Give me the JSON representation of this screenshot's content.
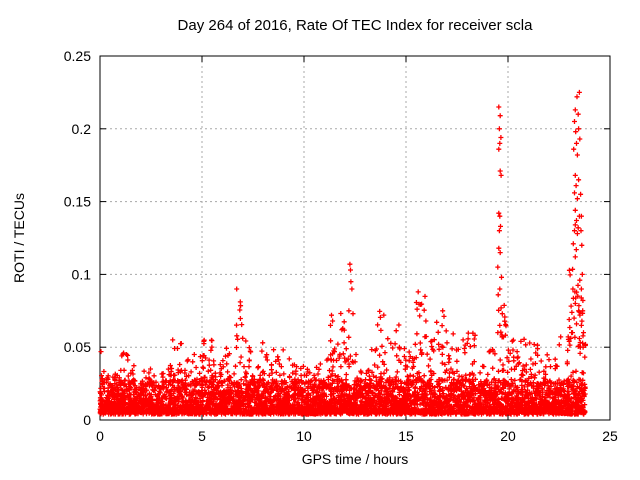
{
  "page": {
    "background": "#ffffff"
  },
  "chart_data": {
    "type": "scatter",
    "title": "Day 264 of 2016, Rate Of TEC Index for receiver scla",
    "xlabel": "GPS time / hours",
    "ylabel": "ROTI / TECUs",
    "xlim": [
      0,
      25
    ],
    "ylim": [
      0,
      0.25
    ],
    "xticks": [
      0,
      5,
      10,
      15,
      20,
      25
    ],
    "yticks": [
      0,
      0.05,
      0.1,
      0.15,
      0.2,
      0.25
    ],
    "xtick_labels": [
      "0",
      "5",
      "10",
      "15",
      "20",
      "25"
    ],
    "ytick_labels": [
      "0",
      "0.05",
      "0.1",
      "0.15",
      "0.2",
      "0.25"
    ],
    "grid": true,
    "grid_style": "dashed",
    "legend": "none",
    "marker": "plus",
    "marker_color": "#ff0000",
    "grid_color": "#a8a8a8",
    "axis_color": "#000000",
    "data_time_range_hours": [
      0,
      23.8
    ],
    "scatter_envelope": {
      "floor": 0.004,
      "core_band_top": 0.028,
      "core_density_per_hour": 130,
      "envelope_density_per_hour": 85,
      "bins": [
        [
          0.0,
          0.5,
          0.034
        ],
        [
          0.5,
          1.0,
          0.032
        ],
        [
          1.0,
          1.5,
          0.046
        ],
        [
          1.5,
          2.0,
          0.04
        ],
        [
          2.0,
          2.5,
          0.036
        ],
        [
          2.5,
          3.0,
          0.032
        ],
        [
          3.0,
          3.5,
          0.04
        ],
        [
          3.5,
          4.0,
          0.065
        ],
        [
          4.0,
          4.5,
          0.046
        ],
        [
          4.5,
          5.0,
          0.045
        ],
        [
          5.0,
          5.5,
          0.055
        ],
        [
          5.5,
          6.0,
          0.042
        ],
        [
          6.0,
          6.5,
          0.05
        ],
        [
          6.5,
          7.0,
          0.088
        ],
        [
          7.0,
          7.5,
          0.056
        ],
        [
          7.5,
          8.0,
          0.06
        ],
        [
          8.0,
          8.5,
          0.046
        ],
        [
          8.5,
          9.0,
          0.052
        ],
        [
          9.0,
          9.5,
          0.046
        ],
        [
          9.5,
          10.0,
          0.038
        ],
        [
          10.0,
          10.5,
          0.035
        ],
        [
          10.5,
          11.0,
          0.04
        ],
        [
          11.0,
          11.5,
          0.06
        ],
        [
          11.5,
          12.0,
          0.075
        ],
        [
          12.0,
          12.5,
          0.06
        ],
        [
          12.5,
          13.0,
          0.042
        ],
        [
          13.0,
          13.5,
          0.05
        ],
        [
          13.5,
          14.0,
          0.075
        ],
        [
          14.0,
          14.5,
          0.06
        ],
        [
          14.5,
          15.0,
          0.068
        ],
        [
          15.0,
          15.5,
          0.055
        ],
        [
          15.5,
          16.0,
          0.088
        ],
        [
          16.0,
          16.5,
          0.058
        ],
        [
          16.5,
          17.0,
          0.072
        ],
        [
          17.0,
          17.5,
          0.06
        ],
        [
          17.5,
          18.0,
          0.055
        ],
        [
          18.0,
          18.5,
          0.06
        ],
        [
          18.5,
          19.0,
          0.048
        ],
        [
          19.0,
          19.5,
          0.06
        ],
        [
          19.5,
          20.0,
          0.085
        ],
        [
          20.0,
          20.5,
          0.055
        ],
        [
          20.5,
          21.0,
          0.06
        ],
        [
          21.0,
          21.5,
          0.062
        ],
        [
          21.5,
          22.0,
          0.045
        ],
        [
          22.0,
          22.5,
          0.042
        ],
        [
          22.5,
          23.0,
          0.06
        ],
        [
          23.0,
          23.5,
          0.105
        ],
        [
          23.5,
          23.8,
          0.085
        ]
      ]
    },
    "outliers": [
      [
        0.05,
        0.047
      ],
      [
        1.3,
        0.045
      ],
      [
        6.7,
        0.09
      ],
      [
        11.3,
        0.065
      ],
      [
        11.35,
        0.072
      ],
      [
        11.4,
        0.068
      ],
      [
        12.2,
        0.075
      ],
      [
        12.25,
        0.107
      ],
      [
        12.28,
        0.103
      ],
      [
        12.3,
        0.095
      ],
      [
        12.35,
        0.09
      ],
      [
        12.4,
        0.073
      ],
      [
        12.55,
        0.045
      ],
      [
        15.6,
        0.088
      ],
      [
        16.8,
        0.075
      ],
      [
        19.55,
        0.215
      ],
      [
        19.62,
        0.209
      ],
      [
        19.58,
        0.2
      ],
      [
        19.65,
        0.194
      ],
      [
        19.6,
        0.19
      ],
      [
        19.55,
        0.186
      ],
      [
        19.62,
        0.171
      ],
      [
        19.66,
        0.168
      ],
      [
        19.55,
        0.142
      ],
      [
        19.6,
        0.14
      ],
      [
        19.63,
        0.133
      ],
      [
        19.58,
        0.13
      ],
      [
        19.55,
        0.118
      ],
      [
        19.62,
        0.115
      ],
      [
        19.5,
        0.105
      ],
      [
        19.68,
        0.098
      ],
      [
        19.6,
        0.09
      ],
      [
        19.52,
        0.086
      ],
      [
        19.66,
        0.077
      ],
      [
        19.72,
        0.073
      ],
      [
        19.6,
        0.065
      ],
      [
        19.5,
        0.06
      ],
      [
        19.78,
        0.057
      ],
      [
        23.5,
        0.225
      ],
      [
        23.38,
        0.222
      ],
      [
        23.3,
        0.213
      ],
      [
        23.44,
        0.21
      ],
      [
        23.26,
        0.205
      ],
      [
        23.46,
        0.2
      ],
      [
        23.32,
        0.198
      ],
      [
        23.52,
        0.193
      ],
      [
        23.36,
        0.19
      ],
      [
        23.22,
        0.186
      ],
      [
        23.4,
        0.182
      ],
      [
        23.3,
        0.168
      ],
      [
        23.46,
        0.165
      ],
      [
        23.34,
        0.161
      ],
      [
        23.26,
        0.156
      ],
      [
        23.56,
        0.155
      ],
      [
        23.4,
        0.152
      ],
      [
        23.3,
        0.144
      ],
      [
        23.5,
        0.14
      ],
      [
        23.6,
        0.14
      ],
      [
        23.36,
        0.137
      ],
      [
        23.3,
        0.134
      ],
      [
        23.44,
        0.132
      ],
      [
        23.26,
        0.13
      ],
      [
        23.58,
        0.13
      ],
      [
        23.4,
        0.128
      ],
      [
        23.2,
        0.121
      ],
      [
        23.62,
        0.12
      ],
      [
        23.35,
        0.117
      ],
      [
        23.3,
        0.112
      ],
      [
        23.64,
        0.1
      ],
      [
        23.52,
        0.096
      ],
      [
        23.18,
        0.09
      ],
      [
        23.6,
        0.09
      ],
      [
        23.42,
        0.085
      ],
      [
        23.3,
        0.08
      ],
      [
        23.46,
        0.075
      ],
      [
        23.66,
        0.075
      ],
      [
        23.24,
        0.07
      ],
      [
        23.36,
        0.066
      ],
      [
        23.6,
        0.065
      ],
      [
        23.12,
        0.06
      ],
      [
        23.7,
        0.06
      ],
      [
        23.5,
        0.056
      ],
      [
        23.55,
        0.05
      ],
      [
        23.68,
        0.05
      ]
    ]
  }
}
